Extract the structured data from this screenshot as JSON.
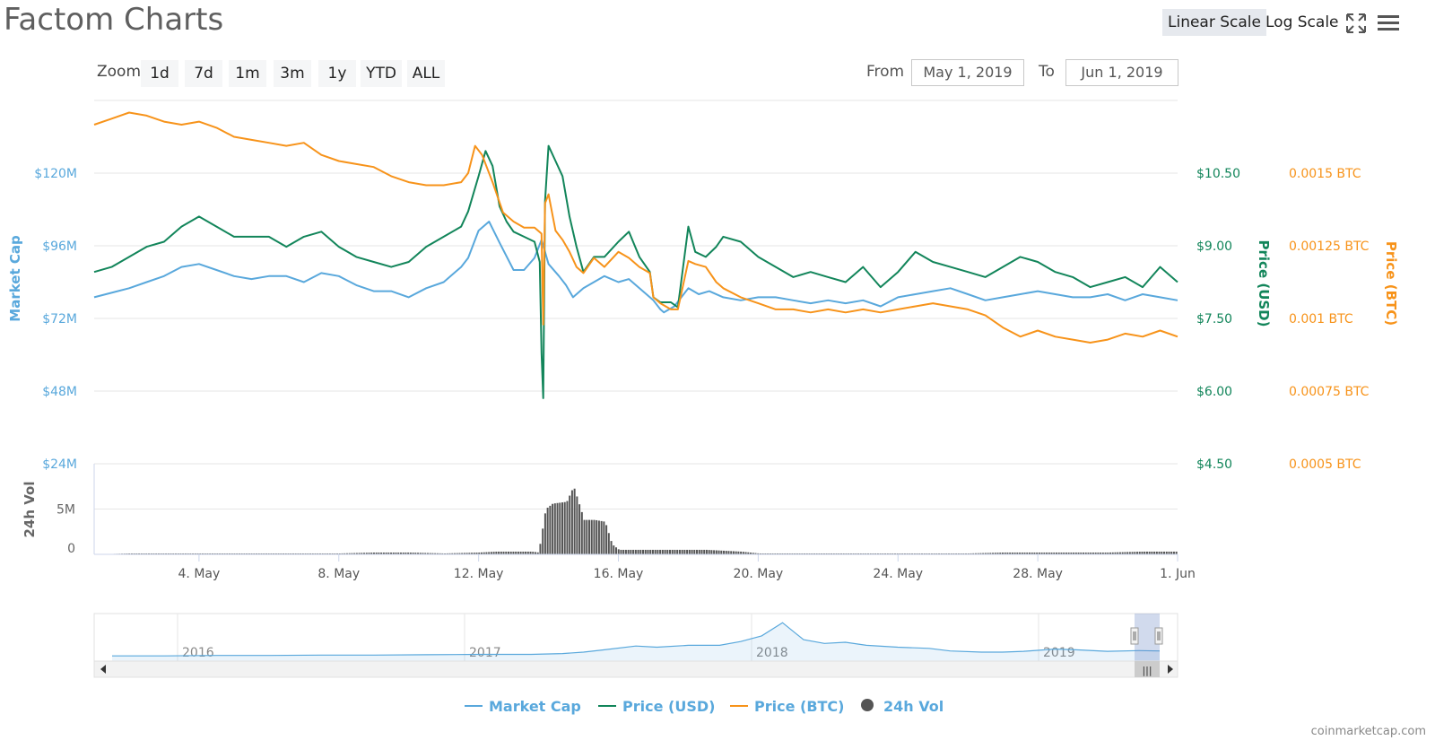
{
  "header": {
    "title": "Factom Charts",
    "linear_scale": "Linear Scale",
    "log_scale": "Log Scale",
    "fullscreen_icon": "fullscreen-icon",
    "menu_icon": "menu-icon"
  },
  "zoom": {
    "label": "Zoom",
    "buttons": [
      "1d",
      "7d",
      "1m",
      "3m",
      "1y",
      "YTD",
      "ALL"
    ]
  },
  "range": {
    "from_label": "From",
    "from_value": "May 1, 2019",
    "to_label": "To",
    "to_value": "Jun 1, 2019"
  },
  "colors": {
    "market_cap": "#59a8dc",
    "price_usd": "#12855a",
    "price_btc": "#f7931a",
    "volume": "#555555"
  },
  "chart_data": {
    "type": "line",
    "x_axis": {
      "range": [
        "2019-05-01",
        "2019-06-01"
      ],
      "ticks": [
        "4. May",
        "8. May",
        "12. May",
        "16. May",
        "20. May",
        "24. May",
        "28. May",
        "1. Jun"
      ]
    },
    "y_axes": {
      "market_cap": {
        "label": "Market Cap",
        "ticks": [
          "$24M",
          "$48M",
          "$72M",
          "$96M",
          "$120M"
        ],
        "range": [
          24,
          144
        ]
      },
      "price_usd": {
        "label": "Price (USD)",
        "ticks": [
          "$4.50",
          "$6.00",
          "$7.50",
          "$9.00",
          "$10.50"
        ],
        "range": [
          4.5,
          11.7
        ]
      },
      "price_btc": {
        "label": "Price (BTC)",
        "ticks": [
          "0.0005 BTC",
          "0.00075 BTC",
          "0.001 BTC",
          "0.00125 BTC",
          "0.0015 BTC"
        ],
        "range": [
          0.0005,
          0.0017
        ]
      },
      "volume": {
        "label": "24h Vol",
        "ticks": [
          "0",
          "5M"
        ],
        "range": [
          0,
          10
        ]
      }
    },
    "series": [
      {
        "name": "Market Cap",
        "x": [
          1.0,
          2.0,
          2.5,
          3.0,
          3.5,
          4.0,
          4.5,
          5.0,
          5.5,
          6.0,
          6.5,
          7.0,
          7.5,
          8.0,
          8.5,
          9.0,
          9.5,
          10.0,
          10.5,
          11.0,
          11.5,
          11.7,
          12.0,
          12.3,
          12.6,
          13.0,
          13.3,
          13.6,
          13.7,
          13.8,
          14.0,
          14.3,
          14.5,
          14.7,
          15.0,
          15.3,
          15.6,
          16.0,
          16.3,
          16.6,
          17.0,
          17.2,
          17.3,
          17.6,
          17.8,
          18.0,
          18.3,
          18.6,
          19.0,
          19.5,
          20.0,
          20.5,
          21.0,
          21.5,
          22.0,
          22.5,
          23.0,
          23.5,
          24.0,
          24.5,
          25.0,
          25.5,
          26.0,
          26.5,
          27.0,
          27.5,
          28.0,
          28.5,
          29.0,
          29.5,
          30.0,
          30.5,
          31.0,
          31.5,
          32.0
        ],
        "values": [
          79,
          82,
          84,
          86,
          89,
          90,
          88,
          86,
          85,
          86,
          86,
          84,
          87,
          86,
          83,
          81,
          81,
          79,
          82,
          84,
          89,
          92,
          101,
          104,
          97,
          88,
          88,
          92,
          95,
          98,
          90,
          86,
          83,
          79,
          82,
          84,
          86,
          84,
          85,
          82,
          78,
          75,
          74,
          76,
          79,
          82,
          80,
          81,
          79,
          78,
          79,
          79,
          78,
          77,
          78,
          77,
          78,
          76,
          79,
          80,
          81,
          82,
          80,
          78,
          79,
          80,
          81,
          80,
          79,
          79,
          80,
          78,
          80,
          79,
          78
        ]
      },
      {
        "name": "Price (USD)",
        "x": [
          1.0,
          1.5,
          2.0,
          2.5,
          3.0,
          3.5,
          4.0,
          4.5,
          5.0,
          5.5,
          6.0,
          6.5,
          7.0,
          7.5,
          8.0,
          8.5,
          9.0,
          9.5,
          10.0,
          10.5,
          11.0,
          11.5,
          11.7,
          12.0,
          12.2,
          12.4,
          12.6,
          12.8,
          13.0,
          13.3,
          13.6,
          13.75,
          13.8,
          13.85,
          13.9,
          14.0,
          14.2,
          14.4,
          14.6,
          14.8,
          15.0,
          15.3,
          15.6,
          16.0,
          16.3,
          16.6,
          16.9,
          17.0,
          17.2,
          17.5,
          17.7,
          18.0,
          18.2,
          18.5,
          18.8,
          19.0,
          19.5,
          20.0,
          20.5,
          21.0,
          21.5,
          22.0,
          22.5,
          23.0,
          23.5,
          24.0,
          24.5,
          25.0,
          25.5,
          26.0,
          26.5,
          27.0,
          27.5,
          28.0,
          28.5,
          29.0,
          29.5,
          30.0,
          30.5,
          31.0,
          31.5,
          32.0
        ],
        "values": [
          8.3,
          8.4,
          8.6,
          8.8,
          8.9,
          9.2,
          9.4,
          9.2,
          9.0,
          9.0,
          9.0,
          8.8,
          9.0,
          9.1,
          8.8,
          8.6,
          8.5,
          8.4,
          8.5,
          8.8,
          9.0,
          9.2,
          9.5,
          10.2,
          10.7,
          10.4,
          9.6,
          9.3,
          9.1,
          9.0,
          8.9,
          8.5,
          6.7,
          5.8,
          9.7,
          10.8,
          10.5,
          10.2,
          9.4,
          8.8,
          8.3,
          8.6,
          8.6,
          8.9,
          9.1,
          8.6,
          8.3,
          7.8,
          7.7,
          7.7,
          7.6,
          9.2,
          8.7,
          8.6,
          8.8,
          9.0,
          8.9,
          8.6,
          8.4,
          8.2,
          8.3,
          8.2,
          8.1,
          8.4,
          8.0,
          8.3,
          8.7,
          8.5,
          8.4,
          8.3,
          8.2,
          8.4,
          8.6,
          8.5,
          8.3,
          8.2,
          8.0,
          8.1,
          8.2,
          8.0,
          8.4,
          8.1
        ]
      },
      {
        "name": "Price (BTC)",
        "x": [
          1.0,
          1.5,
          2.0,
          2.5,
          3.0,
          3.5,
          4.0,
          4.5,
          5.0,
          5.5,
          6.0,
          6.5,
          7.0,
          7.5,
          8.0,
          8.5,
          9.0,
          9.5,
          10.0,
          10.5,
          11.0,
          11.5,
          11.7,
          11.9,
          12.1,
          12.4,
          12.7,
          13.0,
          13.3,
          13.6,
          13.8,
          13.85,
          13.9,
          14.0,
          14.2,
          14.4,
          14.6,
          14.8,
          15.0,
          15.3,
          15.6,
          16.0,
          16.3,
          16.6,
          16.9,
          17.0,
          17.2,
          17.5,
          17.7,
          18.0,
          18.2,
          18.5,
          18.8,
          19.0,
          19.5,
          20.0,
          20.5,
          21.0,
          21.5,
          22.0,
          22.5,
          23.0,
          23.5,
          24.0,
          24.5,
          25.0,
          25.5,
          26.0,
          26.5,
          27.0,
          27.5,
          28.0,
          28.5,
          29.0,
          29.5,
          30.0,
          30.5,
          31.0,
          31.5,
          32.0
        ],
        "values": [
          0.00162,
          0.00164,
          0.00166,
          0.00165,
          0.00163,
          0.00162,
          0.00163,
          0.00161,
          0.00158,
          0.00157,
          0.00156,
          0.00155,
          0.00156,
          0.00152,
          0.0015,
          0.00149,
          0.00148,
          0.00145,
          0.00143,
          0.00142,
          0.00142,
          0.00143,
          0.00146,
          0.00155,
          0.00152,
          0.00143,
          0.00133,
          0.0013,
          0.00128,
          0.00128,
          0.00126,
          0.00096,
          0.00136,
          0.00139,
          0.00127,
          0.00124,
          0.0012,
          0.00115,
          0.00113,
          0.00118,
          0.00115,
          0.0012,
          0.00118,
          0.00115,
          0.00113,
          0.00105,
          0.00103,
          0.00101,
          0.00101,
          0.00117,
          0.00116,
          0.00115,
          0.0011,
          0.00108,
          0.00105,
          0.00103,
          0.00101,
          0.00101,
          0.001,
          0.00101,
          0.001,
          0.00101,
          0.001,
          0.00101,
          0.00102,
          0.00103,
          0.00102,
          0.00101,
          0.00099,
          0.00095,
          0.00092,
          0.00094,
          0.00092,
          0.00091,
          0.0009,
          0.00091,
          0.00093,
          0.00092,
          0.00094,
          0.00092
        ]
      }
    ],
    "volume": {
      "name": "24h Vol",
      "x": [
        1.0,
        2.0,
        3.0,
        4.0,
        5.0,
        6.0,
        7.0,
        8.0,
        9.0,
        10.0,
        11.0,
        12.0,
        12.5,
        13.0,
        13.5,
        13.7,
        13.9,
        14.1,
        14.3,
        14.5,
        14.7,
        15.0,
        15.3,
        15.6,
        15.8,
        16.0,
        16.5,
        17.0,
        17.5,
        18.0,
        18.5,
        19.0,
        19.5,
        20.0,
        21.0,
        22.0,
        23.0,
        24.0,
        25.0,
        26.0,
        27.0,
        28.0,
        29.0,
        30.0,
        31.0,
        32.0
      ],
      "values": [
        0,
        0.1,
        0.1,
        0.1,
        0.1,
        0.1,
        0.1,
        0.1,
        0.2,
        0.2,
        0.1,
        0.2,
        0.3,
        0.3,
        0.3,
        0.2,
        5.0,
        5.6,
        5.7,
        5.8,
        7.5,
        3.8,
        3.8,
        3.6,
        1.1,
        0.5,
        0.5,
        0.5,
        0.5,
        0.5,
        0.5,
        0.4,
        0.3,
        0.1,
        0.1,
        0.1,
        0.1,
        0.1,
        0.1,
        0.1,
        0.2,
        0.2,
        0.2,
        0.2,
        0.3,
        0.3
      ]
    },
    "legend": {
      "placement": "bottom",
      "entries": [
        "Market Cap",
        "Price (USD)",
        "Price (BTC)",
        "24h Vol"
      ]
    },
    "navigator": {
      "ticks": [
        "2016",
        "2017",
        "2018",
        "2019"
      ],
      "x": [
        0,
        0.05,
        0.1,
        0.15,
        0.2,
        0.25,
        0.3,
        0.35,
        0.4,
        0.43,
        0.45,
        0.47,
        0.5,
        0.52,
        0.55,
        0.58,
        0.6,
        0.62,
        0.64,
        0.66,
        0.68,
        0.7,
        0.72,
        0.75,
        0.78,
        0.8,
        0.83,
        0.85,
        0.87,
        0.9,
        0.92,
        0.95,
        0.98,
        1.0
      ],
      "values": [
        0.02,
        0.02,
        0.03,
        0.03,
        0.04,
        0.04,
        0.05,
        0.06,
        0.06,
        0.08,
        0.12,
        0.18,
        0.28,
        0.25,
        0.3,
        0.3,
        0.4,
        0.55,
        0.9,
        0.45,
        0.35,
        0.38,
        0.3,
        0.25,
        0.22,
        0.15,
        0.12,
        0.12,
        0.14,
        0.2,
        0.18,
        0.14,
        0.16,
        0.15
      ]
    },
    "grid": true
  },
  "credit": "coinmarketcap.com"
}
